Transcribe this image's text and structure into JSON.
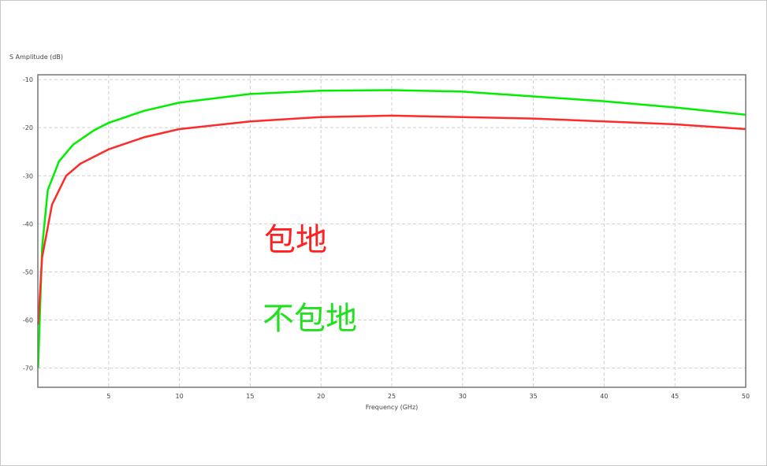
{
  "chart_data": {
    "type": "line",
    "ylabel": "S Amplitude (dB)",
    "xlabel": "Frequency (GHz)",
    "xlim": [
      0,
      50
    ],
    "ylim": [
      -74,
      -9
    ],
    "xticks": [
      5,
      10,
      15,
      20,
      25,
      30,
      35,
      40,
      45,
      50
    ],
    "yticks": [
      -10,
      -20,
      -30,
      -40,
      -50,
      -60,
      -70
    ],
    "grid": true,
    "annotations": [
      {
        "text": "包地",
        "color": "#ff2020"
      },
      {
        "text": "不包地",
        "color": "#20e020"
      }
    ],
    "series": [
      {
        "color": "#00ee00",
        "x": [
          0.02,
          0.3,
          0.7,
          1.5,
          2.5,
          4,
          5,
          7.5,
          10,
          15,
          20,
          25,
          30,
          35,
          40,
          45,
          50
        ],
        "y": [
          -70,
          -45,
          -33,
          -27,
          -23.5,
          -20.5,
          -19,
          -16.5,
          -14.8,
          -13,
          -12.3,
          -12.2,
          -12.5,
          -13.5,
          -14.5,
          -15.8,
          -17.3
        ]
      },
      {
        "color": "#ff2a2a",
        "x": [
          0.02,
          0.3,
          1,
          2,
          3,
          5,
          7.5,
          10,
          15,
          20,
          25,
          30,
          35,
          40,
          45,
          50
        ],
        "y": [
          -61,
          -47,
          -36,
          -30,
          -27.5,
          -24.5,
          -22,
          -20.3,
          -18.7,
          -17.8,
          -17.5,
          -17.8,
          -18.1,
          -18.7,
          -19.3,
          -20.3
        ]
      }
    ]
  }
}
